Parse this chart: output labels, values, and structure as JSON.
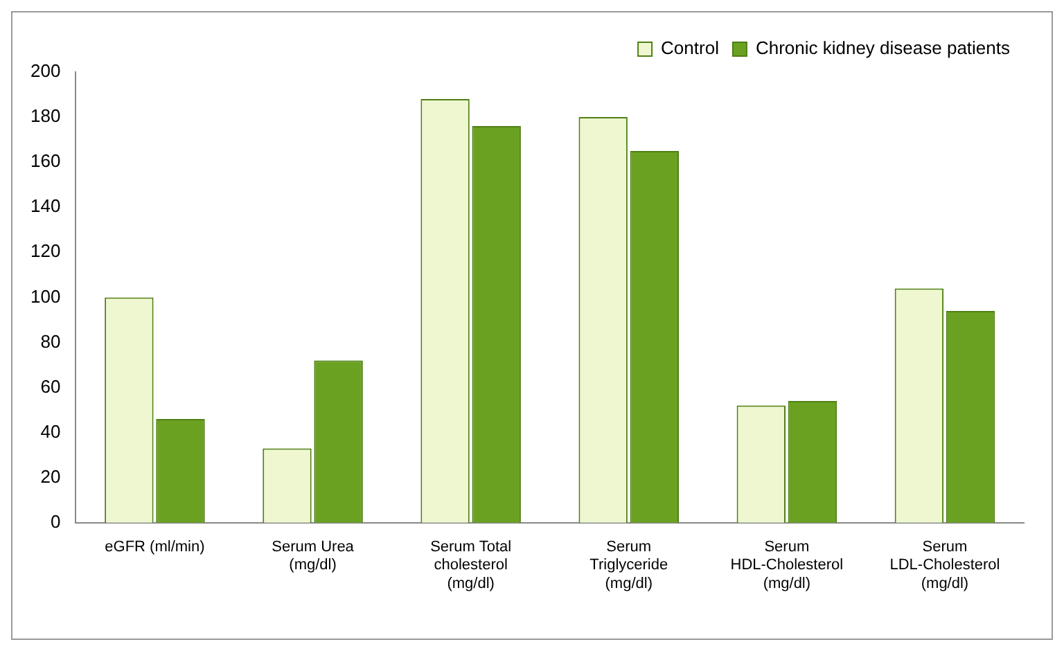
{
  "chart_data": {
    "type": "bar",
    "categories": [
      "eGFR (ml/min)",
      "Serum Urea (mg/dl)",
      "Serum Total cholesterol (mg/dl)",
      "Serum Triglyceride (mg/dl)",
      "Serum HDL-Cholesterol (mg/dl)",
      "Serum LDL-Cholesterol (mg/dl)"
    ],
    "series": [
      {
        "name": "Control",
        "color": "#eef7cf",
        "values": [
          100,
          33,
          188,
          180,
          52,
          104
        ]
      },
      {
        "name": "Chronic kidney disease patients",
        "color": "#6aa121",
        "values": [
          46,
          72,
          176,
          165,
          54,
          94
        ]
      }
    ],
    "ylim": [
      0,
      200
    ],
    "yticks": [
      0,
      20,
      40,
      60,
      80,
      100,
      120,
      140,
      160,
      180,
      200
    ],
    "grid": false,
    "legend": "top right"
  }
}
